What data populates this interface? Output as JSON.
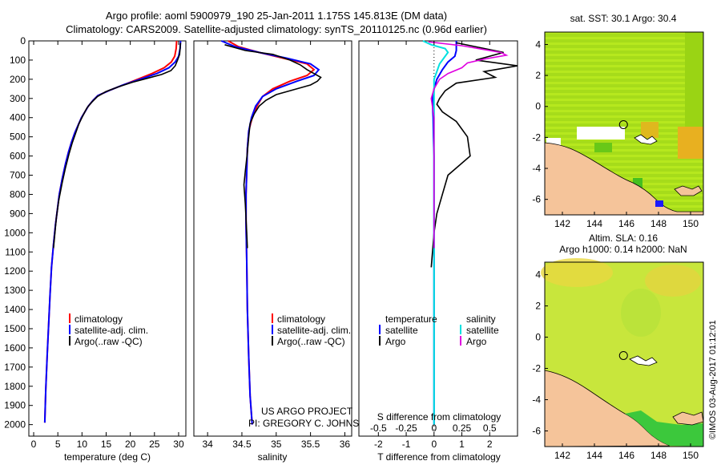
{
  "title_line1": "Argo profile: aoml 5900979_190 25-Jan-2011 1.175S 145.813E (DM data)",
  "title_line2": "Climatology: CARS2009. Satellite-adjusted climatology: synTS_20110125.nc (0.96d earlier)",
  "colors": {
    "climatology": "#ff0000",
    "satellite": "#0000ff",
    "argo": "#000000",
    "sal_satellite": "#00e0e0",
    "sal_argo": "#e000e0",
    "land": "#f5c49a"
  },
  "depth_ticks": [
    "0",
    "100",
    "200",
    "300",
    "400",
    "500",
    "600",
    "700",
    "800",
    "900",
    "1000",
    "1100",
    "1200",
    "1300",
    "1400",
    "1500",
    "1600",
    "1700",
    "1800",
    "1900",
    "2000"
  ],
  "legend_profile": [
    "climatology",
    "satellite-adj. clim.",
    "Argo(..raw -QC)"
  ],
  "legend_diff": {
    "temperature": "temperature",
    "salinity": "salinity",
    "satellite": "satellite",
    "argo": "Argo"
  },
  "credit_line1": "US ARGO PROJECT",
  "credit_line2": "PI: GREGORY C. JOHNSON",
  "map_sst_title": "sat. SST: 30.1 Argo: 30.4",
  "map_sla_title1": "Altim. SLA: 0.16",
  "map_sla_title2": "Argo h1000: 0.14 h2000: NaN",
  "stamp": "©IMOS 03-Aug-2017 01:12:01",
  "chart_data": [
    {
      "type": "line",
      "id": "temperature",
      "xlabel": "temperature (deg C)",
      "ylabel": "",
      "xlim": [
        -1,
        31.5
      ],
      "ylim": [
        0,
        2060
      ],
      "xticks": [
        0,
        5,
        10,
        15,
        20,
        25,
        30
      ],
      "series": [
        {
          "name": "climatology",
          "x": [
            29.6,
            29.5,
            29.2,
            28.5,
            27.0,
            24.5,
            21.5,
            18.5,
            15.5,
            13.3,
            12.3,
            11.3,
            10.6,
            9.9,
            9.2,
            8.5,
            7.8,
            7.2,
            6.6,
            5.9,
            5.3,
            4.9,
            4.5,
            4.1,
            3.7,
            3.4,
            3.1,
            2.8,
            2.5,
            2.3
          ],
          "y": [
            0,
            40,
            80,
            110,
            140,
            170,
            200,
            230,
            260,
            285,
            310,
            340,
            370,
            400,
            440,
            480,
            530,
            580,
            640,
            720,
            800,
            880,
            960,
            1060,
            1180,
            1320,
            1480,
            1640,
            1820,
            1990
          ]
        },
        {
          "name": "satellite-adj. clim.",
          "x": [
            30.4,
            30.3,
            30.0,
            29.3,
            28.0,
            25.5,
            22.0,
            18.5,
            15.5,
            13.3,
            12.3,
            11.3,
            10.6,
            9.9,
            9.2,
            8.5,
            7.8,
            7.2,
            6.6,
            5.9,
            5.3,
            4.9,
            4.5,
            4.1,
            3.7,
            3.4,
            3.1,
            2.8,
            2.5,
            2.3
          ],
          "y": [
            0,
            40,
            80,
            110,
            140,
            170,
            200,
            230,
            260,
            285,
            310,
            340,
            370,
            400,
            440,
            480,
            530,
            580,
            640,
            720,
            800,
            880,
            960,
            1060,
            1180,
            1320,
            1480,
            1640,
            1820,
            1990
          ]
        },
        {
          "name": "Argo(..raw -QC)",
          "x": [
            30.4,
            30.3,
            30.2,
            29.8,
            29.3,
            28.4,
            26.5,
            23.5,
            20.5,
            17.5,
            14.9,
            13.2,
            12.0,
            11.0,
            10.2,
            9.4,
            8.7,
            8.0,
            7.3,
            6.6,
            5.9,
            5.2,
            4.7,
            4.4,
            4.1
          ],
          "y": [
            10,
            40,
            70,
            100,
            130,
            155,
            175,
            195,
            215,
            240,
            265,
            290,
            320,
            350,
            390,
            430,
            480,
            530,
            590,
            660,
            740,
            830,
            920,
            1000,
            1080
          ]
        }
      ]
    },
    {
      "type": "line",
      "id": "salinity",
      "xlabel": "salinity",
      "ylabel": "",
      "xlim": [
        33.8,
        36.1
      ],
      "ylim": [
        0,
        2060
      ],
      "xticks": [
        34,
        34.5,
        35,
        35.5,
        36
      ],
      "series": [
        {
          "name": "climatology",
          "x": [
            34.3,
            34.45,
            34.75,
            35.1,
            35.45,
            35.55,
            35.45,
            35.2,
            34.95,
            34.8,
            34.72,
            34.65,
            34.6,
            34.58,
            34.57,
            34.56,
            34.56,
            34.57,
            34.58,
            34.6,
            34.62,
            34.65
          ],
          "y": [
            0,
            30,
            60,
            90,
            120,
            150,
            180,
            210,
            250,
            290,
            340,
            400,
            470,
            560,
            680,
            800,
            950,
            1150,
            1400,
            1650,
            1850,
            2000
          ]
        },
        {
          "name": "satellite-adj. clim.",
          "x": [
            34.2,
            34.4,
            34.75,
            35.15,
            35.5,
            35.62,
            35.55,
            35.3,
            35.0,
            34.8,
            34.7,
            34.64,
            34.6,
            34.58,
            34.57,
            34.56,
            34.56,
            34.57,
            34.58,
            34.6,
            34.62,
            34.65
          ],
          "y": [
            0,
            30,
            60,
            90,
            120,
            150,
            180,
            210,
            250,
            290,
            340,
            400,
            470,
            560,
            680,
            800,
            950,
            1150,
            1400,
            1650,
            1850,
            2000
          ]
        },
        {
          "name": "Argo(..raw -QC)",
          "x": [
            34.25,
            34.55,
            34.95,
            35.2,
            35.35,
            35.45,
            35.55,
            35.65,
            35.6,
            35.5,
            35.25,
            35.0,
            34.85,
            34.75,
            34.68,
            34.62,
            34.6,
            34.58,
            34.55,
            34.53,
            34.55,
            34.57,
            34.58
          ],
          "y": [
            20,
            50,
            70,
            100,
            125,
            150,
            170,
            190,
            210,
            230,
            255,
            280,
            310,
            340,
            380,
            430,
            500,
            580,
            680,
            750,
            850,
            1000,
            1080
          ]
        }
      ]
    },
    {
      "type": "line",
      "id": "difference",
      "xlabel": "T difference from climatology",
      "x2label": "S difference from climatology",
      "xlim": [
        -2.7,
        3.0
      ],
      "ylim": [
        0,
        2060
      ],
      "xticks": [
        -2,
        -1,
        0,
        1,
        2
      ],
      "x2ticks": [
        {
          "label": "-0.5",
          "x": -2
        },
        {
          "label": "-0.25",
          "x": -1
        },
        {
          "label": "0",
          "x": 0
        },
        {
          "label": "0.25",
          "x": 1
        },
        {
          "label": "0.5",
          "x": 2
        }
      ],
      "series": [
        {
          "name": "temperature satellite",
          "x": [
            0.8,
            0.8,
            0.8,
            0.75,
            0.5,
            0.3,
            0.1,
            0.0,
            -0.05,
            -0.05,
            -0.03,
            -0.02,
            0,
            0,
            0,
            0,
            0,
            0,
            0,
            0
          ],
          "y": [
            0,
            20,
            50,
            80,
            110,
            150,
            200,
            250,
            300,
            350,
            400,
            500,
            600,
            700,
            800,
            1000,
            1300,
            1600,
            1900,
            2000
          ]
        },
        {
          "name": "temperature Argo",
          "x": [
            0.8,
            2.5,
            1.5,
            3.0,
            1.8,
            2.2,
            0.8,
            0.4,
            0.2,
            0.1,
            0.3,
            0.8,
            1.2,
            1.3,
            0.5,
            0.3,
            0.1,
            0.0,
            -0.1
          ],
          "y": [
            10,
            60,
            100,
            130,
            160,
            190,
            220,
            260,
            300,
            330,
            370,
            420,
            500,
            600,
            700,
            800,
            900,
            1000,
            1180
          ]
        },
        {
          "name": "salinity satellite",
          "x": [
            -0.4,
            -0.1,
            0.4,
            0.5,
            0.4,
            0.2,
            0.1,
            0,
            0,
            0,
            0,
            0,
            0,
            0
          ],
          "y": [
            0,
            20,
            40,
            60,
            80,
            120,
            160,
            200,
            300,
            500,
            800,
            1200,
            1600,
            2000
          ]
        },
        {
          "name": "salinity Argo",
          "x": [
            -0.2,
            1.0,
            1.8,
            2.4,
            2.6,
            1.8,
            1.2,
            1.0,
            0.5,
            0.2,
            0.0,
            -0.1,
            0,
            0,
            0,
            0,
            0
          ],
          "y": [
            5,
            25,
            45,
            60,
            75,
            95,
            115,
            140,
            170,
            200,
            250,
            300,
            400,
            600,
            800,
            900,
            1080
          ]
        }
      ]
    },
    {
      "type": "heatmap",
      "id": "map-sst",
      "title": "sat. SST: 30.1 Argo: 30.4",
      "xlim": [
        140.9,
        150.8
      ],
      "ylim": [
        -7,
        4.8
      ],
      "xticks": [
        142,
        144,
        146,
        148,
        150
      ],
      "yticks": [
        -6,
        -4,
        -2,
        0,
        2,
        4
      ],
      "marker": {
        "lon": 145.813,
        "lat": -1.175
      }
    },
    {
      "type": "heatmap",
      "id": "map-sla",
      "title": "Altim. SLA: 0.16",
      "xlim": [
        140.9,
        150.8
      ],
      "ylim": [
        -7,
        4.8
      ],
      "xticks": [
        142,
        144,
        146,
        148,
        150
      ],
      "yticks": [
        -6,
        -4,
        -2,
        0,
        2,
        4
      ],
      "marker": {
        "lon": 145.813,
        "lat": -1.175
      }
    }
  ]
}
